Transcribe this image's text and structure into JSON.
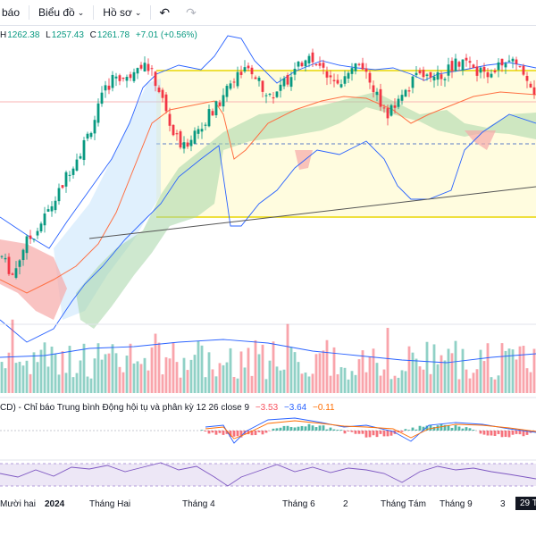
{
  "toolbar": {
    "item1_label": "báo",
    "item2_label": "Biểu đồ",
    "item3_label": "Hồ sơ",
    "undo_icon": "undo-icon",
    "redo_icon": "redo-icon"
  },
  "ohlc": {
    "h_label": "H",
    "h_value": "1262.38",
    "l_label": "L",
    "l_value": "1257.43",
    "c_label": "C",
    "c_value": "1261.78",
    "change": "+7.01 (+0.56%)"
  },
  "macd": {
    "prefix": "CD) - Chỉ báo Trung bình Động hội tụ và phân kỳ 12 26 close 9",
    "v1": "−3.53",
    "v2": "−3.64",
    "v3": "−0.11"
  },
  "time_axis": [
    {
      "label": "Mười hai",
      "bold": false
    },
    {
      "label": "2024",
      "bold": true
    },
    {
      "label": "Tháng Hai",
      "bold": false
    },
    {
      "label": "Tháng 4",
      "bold": false
    },
    {
      "label": "Tháng 6",
      "bold": false
    },
    {
      "label": "2",
      "bold": false
    },
    {
      "label": "Tháng Tám",
      "bold": false
    },
    {
      "label": "Tháng 9",
      "bold": false
    },
    {
      "label": "3",
      "bold": false
    },
    {
      "label": "29 T",
      "bold": false
    }
  ],
  "chart_data": {
    "type": "candlestick",
    "symbol_change": "+7.01 (+0.56%)",
    "close_path": [
      1130,
      1115,
      1140,
      1150,
      1165,
      1180,
      1200,
      1215,
      1235,
      1260,
      1275,
      1270,
      1285,
      1280,
      1260,
      1230,
      1215,
      1230,
      1240,
      1250,
      1265,
      1280,
      1275,
      1265,
      1255,
      1270,
      1278,
      1290,
      1280,
      1275,
      1270,
      1282,
      1275,
      1260,
      1240,
      1255,
      1265,
      1280,
      1270,
      1275,
      1285,
      1282,
      1275,
      1278,
      1282,
      1285,
      1280,
      1262
    ],
    "colors": {
      "up": "#089981",
      "down": "#f23645",
      "cloud_green": "#a5d6a7",
      "cloud_red": "#f7a9a8",
      "bands": "#2962ff",
      "highlight": "#ffeb3b"
    }
  }
}
